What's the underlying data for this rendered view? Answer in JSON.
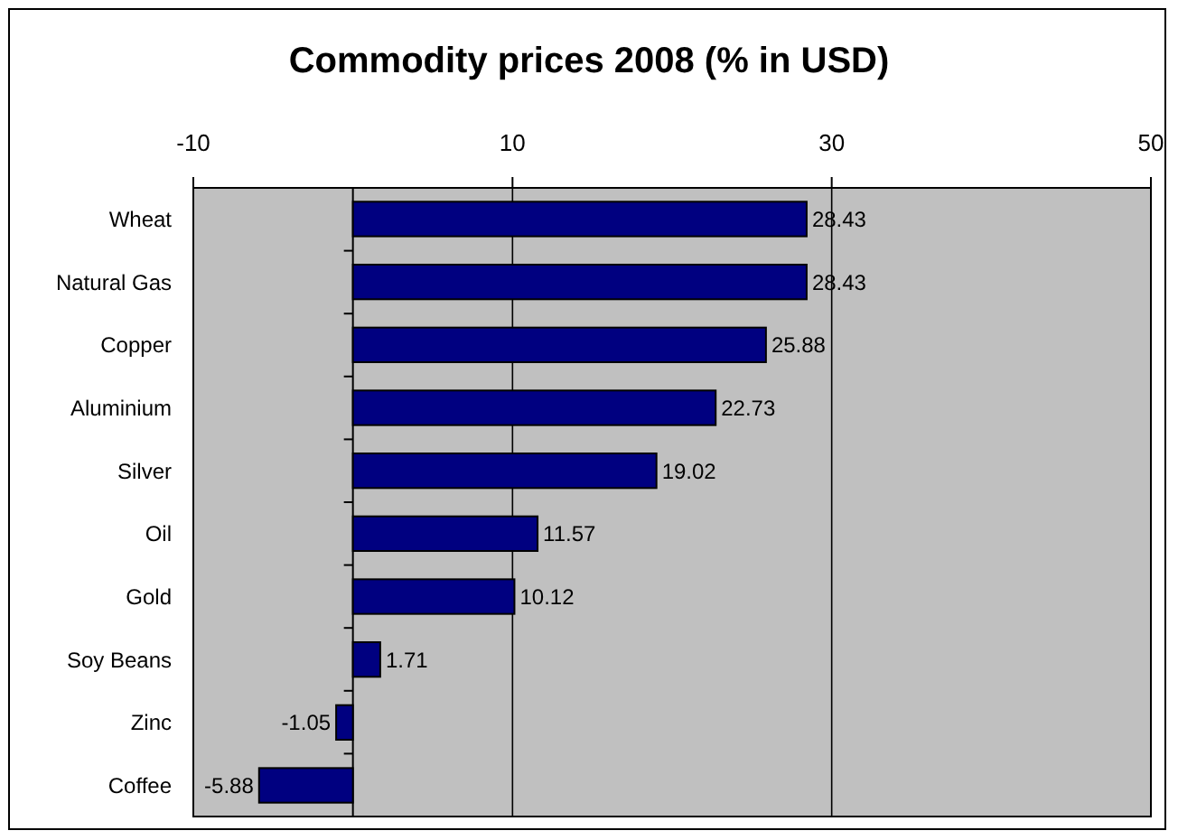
{
  "chart_data": {
    "type": "bar",
    "title": "Commodity prices 2008 (% in USD)",
    "orientation": "horizontal",
    "categories": [
      "Wheat",
      "Natural Gas",
      "Copper",
      "Aluminium",
      "Silver",
      "Oil",
      "Gold",
      "Soy Beans",
      "Zinc",
      "Coffee"
    ],
    "values": [
      28.43,
      28.43,
      25.88,
      22.73,
      19.02,
      11.57,
      10.12,
      1.71,
      -1.05,
      -5.88
    ],
    "color": "#000080",
    "xlim": [
      -10,
      50
    ],
    "xticks": [
      -10,
      10,
      30,
      50
    ],
    "grid": "x",
    "data_labels": true
  }
}
